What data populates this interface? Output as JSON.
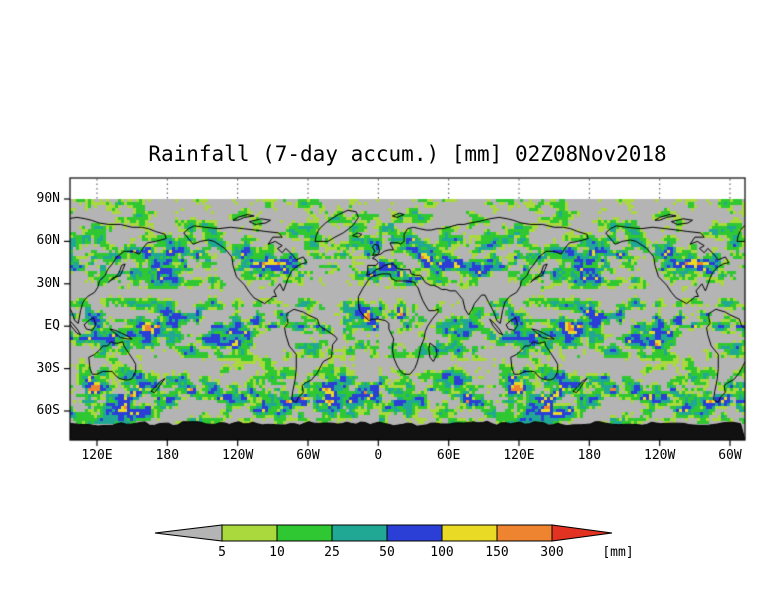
{
  "chart_data": {
    "type": "heatmap",
    "title": "Rainfall (7-day accum.) [mm] 02Z08Nov2018",
    "variable": "Rainfall (7-day accumulation)",
    "units": "mm",
    "valid_time_label": "02Z08Nov2018",
    "projection": "cylindrical-equidistant",
    "map_background": "#b4b4b4",
    "coastline_color": "#000000",
    "lat_axis": {
      "ticks": [
        {
          "value": 90,
          "label": "90N"
        },
        {
          "value": 60,
          "label": "60N"
        },
        {
          "value": 30,
          "label": "30N"
        },
        {
          "value": 0,
          "label": "EQ"
        },
        {
          "value": -30,
          "label": "30S"
        },
        {
          "value": -60,
          "label": "60S"
        }
      ]
    },
    "lon_axis": {
      "ticks": [
        {
          "value": 120,
          "label": "120E"
        },
        {
          "value": 180,
          "label": "180"
        },
        {
          "value": 240,
          "label": "120W"
        },
        {
          "value": 300,
          "label": "60W"
        },
        {
          "value": 360,
          "label": "0"
        },
        {
          "value": 420,
          "label": "60E"
        },
        {
          "value": 480,
          "label": "120E"
        },
        {
          "value": 540,
          "label": "180"
        },
        {
          "value": 600,
          "label": "120W"
        },
        {
          "value": 660,
          "label": "60W"
        }
      ]
    },
    "colorbar": {
      "levels": [
        5,
        10,
        25,
        50,
        100,
        150,
        300
      ],
      "labels": [
        "5",
        "10",
        "25",
        "50",
        "100",
        "150",
        "300"
      ],
      "unit_label": "[mm]",
      "under_color": "#b4b4b4",
      "segment_colors": [
        "#a9d93c",
        "#2fc832",
        "#20a894",
        "#2b3fd6",
        "#e8da25",
        "#ef8430"
      ],
      "over_color": "#e23322"
    }
  }
}
